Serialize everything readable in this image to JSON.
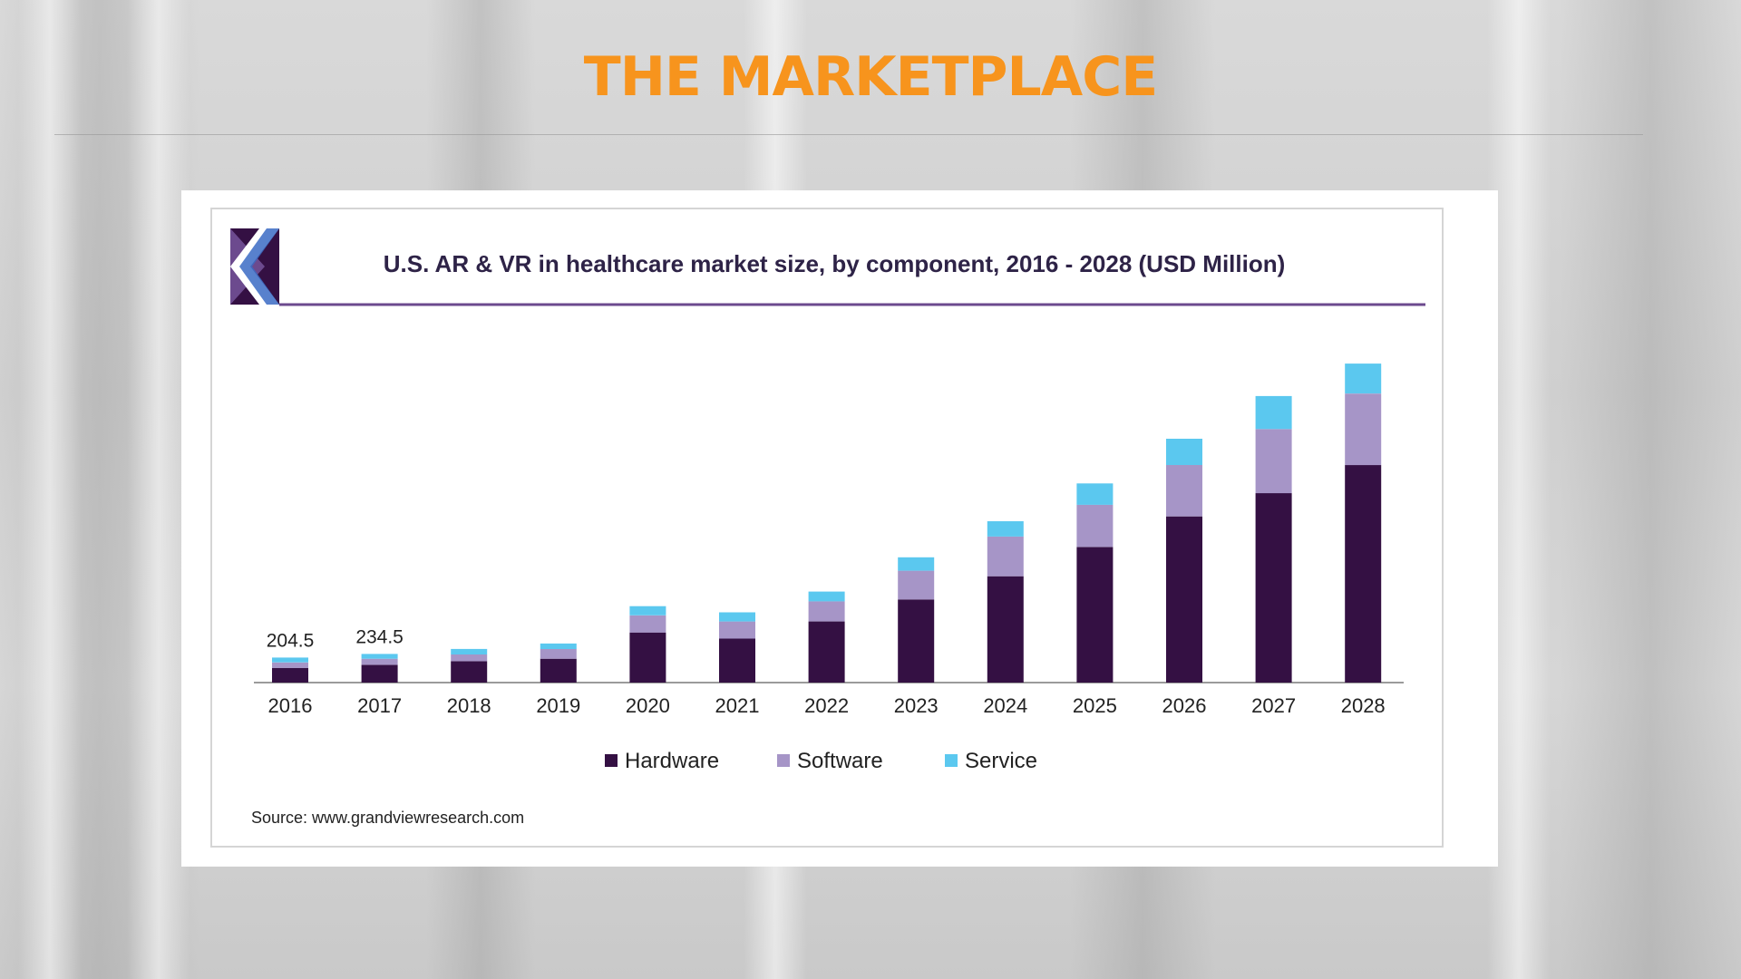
{
  "slide": {
    "title": "THE MARKETPLACE"
  },
  "colors": {
    "title": "#f7941d",
    "hardware": "#341043",
    "software": "#a695c7",
    "service": "#5bc8ef",
    "header_line": "#6c4a8e"
  },
  "chart_data": {
    "type": "bar",
    "stacked": true,
    "title": "U.S. AR & VR in healthcare market size, by component, 2016 - 2028 (USD Million)",
    "categories": [
      "2016",
      "2017",
      "2018",
      "2019",
      "2020",
      "2021",
      "2022",
      "2023",
      "2024",
      "2025",
      "2026",
      "2027",
      "2028"
    ],
    "series": [
      {
        "name": "Hardware",
        "values": [
          120,
          145,
          175,
          195,
          410,
          360,
          500,
          680,
          870,
          1110,
          1360,
          1550,
          1780
        ]
      },
      {
        "name": "Software",
        "values": [
          45,
          50,
          55,
          80,
          140,
          140,
          165,
          235,
          325,
          345,
          420,
          525,
          585
        ]
      },
      {
        "name": "Service",
        "values": [
          39.5,
          39.5,
          45,
          45,
          75,
          75,
          80,
          110,
          125,
          175,
          215,
          270,
          245
        ]
      }
    ],
    "data_labels": [
      {
        "category": "2016",
        "text": "204.5"
      },
      {
        "category": "2017",
        "text": "234.5"
      }
    ],
    "legend": [
      "Hardware",
      "Software",
      "Service"
    ],
    "legend_position": "bottom",
    "source": "Source: www.grandviewresearch.com",
    "ylim": [
      0,
      2700
    ],
    "grid": false
  }
}
